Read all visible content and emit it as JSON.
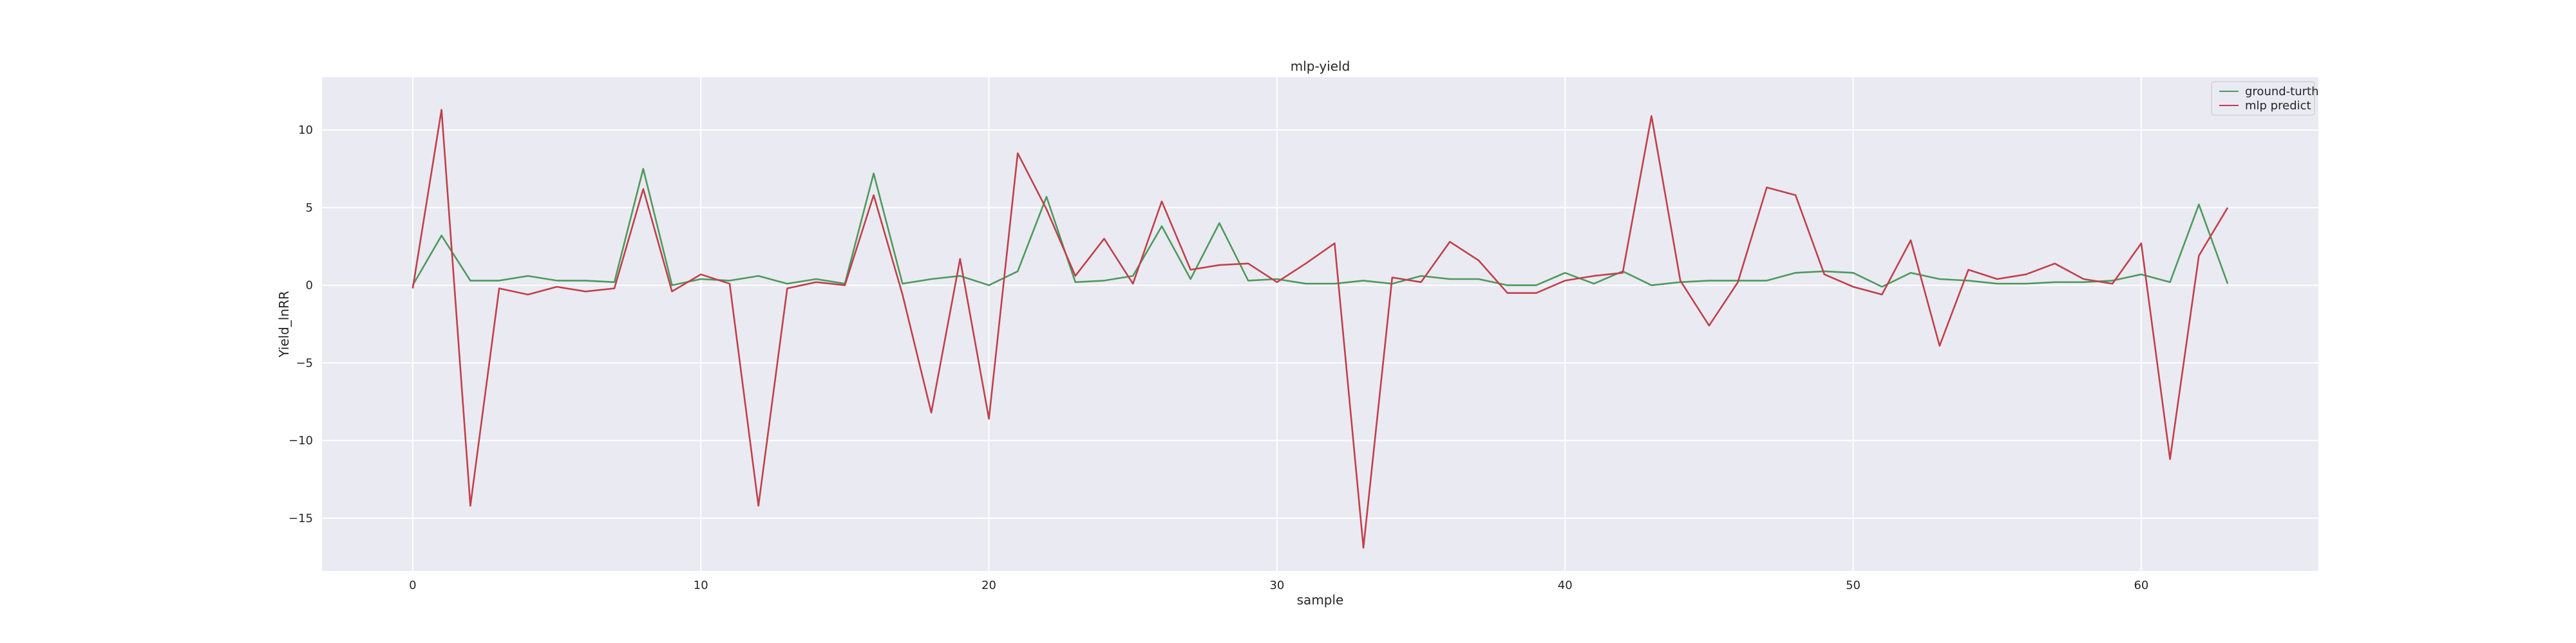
{
  "chart_data": {
    "type": "line",
    "title": "mlp-yield",
    "xlabel": "sample",
    "ylabel": "Yield_lnRR",
    "xlim": [
      -3.15,
      66.15
    ],
    "ylim": [
      -18.4,
      13.4
    ],
    "xticks": [
      0,
      10,
      20,
      30,
      40,
      50,
      60
    ],
    "yticks": [
      -15,
      -10,
      -5,
      0,
      5,
      10
    ],
    "ytick_labels": [
      "−15",
      "−10",
      "−5",
      "0",
      "5",
      "10"
    ],
    "grid": true,
    "legend_position": "top-right",
    "x": [
      0,
      1,
      2,
      3,
      4,
      5,
      6,
      7,
      8,
      9,
      10,
      11,
      12,
      13,
      14,
      15,
      16,
      17,
      18,
      19,
      20,
      21,
      22,
      23,
      24,
      25,
      26,
      27,
      28,
      29,
      30,
      31,
      32,
      33,
      34,
      35,
      36,
      37,
      38,
      39,
      40,
      41,
      42,
      43,
      44,
      45,
      46,
      47,
      48,
      49,
      50,
      51,
      52,
      53,
      54,
      55,
      56,
      57,
      58,
      59,
      60,
      61,
      62,
      63
    ],
    "series": [
      {
        "name": "ground-turth",
        "color": "#4c9a5c",
        "values": [
          0.0,
          3.2,
          0.3,
          0.3,
          0.6,
          0.3,
          0.3,
          0.2,
          7.5,
          0.0,
          0.4,
          0.3,
          0.6,
          0.1,
          0.4,
          0.1,
          7.2,
          0.1,
          0.4,
          0.6,
          0.0,
          0.9,
          5.7,
          0.2,
          0.3,
          0.6,
          3.8,
          0.4,
          4.0,
          0.3,
          0.4,
          0.1,
          0.1,
          0.3,
          0.1,
          0.6,
          0.4,
          0.4,
          0.0,
          0.0,
          0.8,
          0.1,
          0.9,
          0.0,
          0.2,
          0.3,
          0.3,
          0.3,
          0.8,
          0.9,
          0.8,
          -0.1,
          0.8,
          0.4,
          0.3,
          0.1,
          0.1,
          0.2,
          0.2,
          0.3,
          0.7,
          0.2,
          5.2,
          0.1
        ]
      },
      {
        "name": "mlp predict",
        "color": "#c0404a",
        "values": [
          -0.2,
          11.3,
          -14.2,
          -0.2,
          -0.6,
          -0.1,
          -0.4,
          -0.2,
          6.2,
          -0.4,
          0.7,
          0.1,
          -14.2,
          -0.2,
          0.2,
          0.0,
          5.8,
          -0.6,
          -8.2,
          1.7,
          -8.6,
          8.5,
          4.9,
          0.6,
          3.0,
          0.1,
          5.4,
          1.0,
          1.3,
          1.4,
          0.2,
          1.4,
          2.7,
          -16.9,
          0.5,
          0.2,
          2.8,
          1.6,
          -0.5,
          -0.5,
          0.3,
          0.6,
          0.8,
          10.9,
          0.3,
          -2.6,
          0.2,
          6.3,
          5.8,
          0.7,
          -0.1,
          -0.6,
          2.9,
          -3.9,
          1.0,
          0.4,
          0.7,
          1.4,
          0.4,
          0.1,
          2.7,
          -11.2,
          1.9,
          5.0
        ]
      }
    ]
  }
}
